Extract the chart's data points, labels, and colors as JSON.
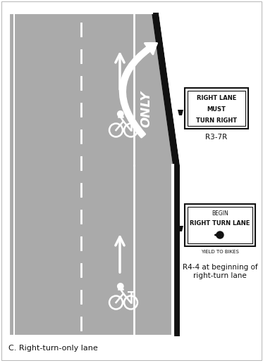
{
  "bg_color": "#ffffff",
  "road_color": "#aaaaaa",
  "white": "#ffffff",
  "dark": "#111111",
  "title": "C. Right-turn-only lane",
  "sign1_lines": [
    "RIGHT LANE",
    "MUST",
    "TURN RIGHT"
  ],
  "sign1_label": "R3-7R",
  "sign2_lines": [
    "BEGIN",
    "RIGHT TURN LANE",
    "YIELD TO BIKES"
  ],
  "sign2_label": "R4-4 at beginning of\nright-turn lane",
  "only_text": "ONLY",
  "fig_width": 3.73,
  "fig_height": 5.16,
  "dpi": 100
}
